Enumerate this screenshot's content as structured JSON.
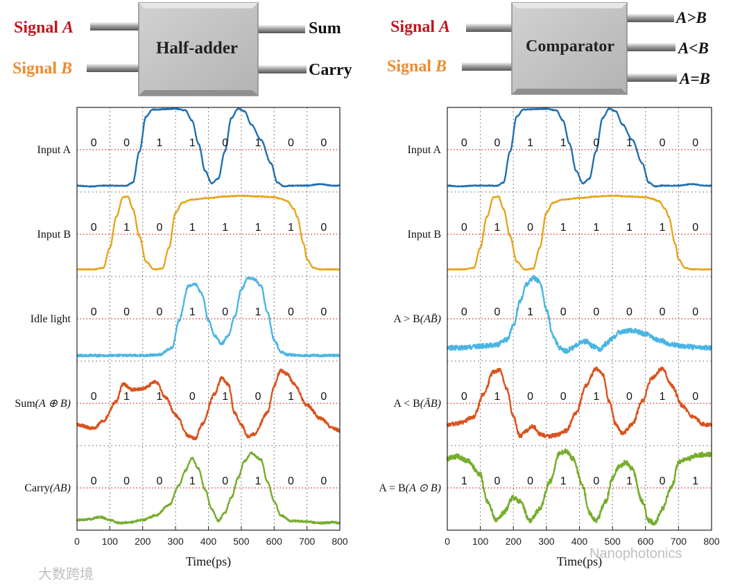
{
  "colors": {
    "signal_a": "#c0161f",
    "signal_b": "#ec8b2f",
    "box_fill": "#c4c4c4",
    "grid": "#555555",
    "bit_line": "#d62020"
  },
  "diagrams": [
    {
      "title": "Half-adder",
      "inputs": [
        {
          "prefix": "Signal ",
          "var": "A",
          "color_key": "signal_a"
        },
        {
          "prefix": "Signal ",
          "var": "B",
          "color_key": "signal_b"
        }
      ],
      "outputs": [
        "Sum",
        "Carry"
      ]
    },
    {
      "title": "Comparator",
      "inputs": [
        {
          "prefix": "Signal ",
          "var": "A",
          "color_key": "signal_a"
        },
        {
          "prefix": "Signal ",
          "var": "B",
          "color_key": "signal_b"
        }
      ],
      "outputs": [
        "A>B",
        "A<B",
        "A=B"
      ]
    }
  ],
  "chart_data": [
    {
      "type": "line",
      "title": "Half-adder",
      "xlabel": "Time(ps)",
      "xlim": [
        0,
        800
      ],
      "xticks": [
        0,
        100,
        200,
        300,
        400,
        500,
        600,
        700,
        800
      ],
      "bit_slots": [
        50,
        150,
        250,
        350,
        450,
        550,
        650,
        750
      ],
      "series": [
        {
          "label": "Input A",
          "color": "#1f6fb0",
          "noise": 0.005,
          "bits": [
            "0",
            "0",
            "1",
            "1",
            "0",
            "1",
            "0",
            "0"
          ],
          "x": [
            0,
            40,
            80,
            120,
            150,
            170,
            190,
            210,
            230,
            300,
            330,
            350,
            370,
            390,
            410,
            430,
            450,
            470,
            490,
            510,
            530,
            560,
            590,
            610,
            630,
            650,
            700,
            740,
            780,
            800
          ],
          "y": [
            0.01,
            0.0,
            0.01,
            0.01,
            0.01,
            0.05,
            0.45,
            0.9,
            0.99,
            1.0,
            0.98,
            0.85,
            0.55,
            0.2,
            0.04,
            0.1,
            0.45,
            0.88,
            1.0,
            0.97,
            0.8,
            0.6,
            0.3,
            0.05,
            0.0,
            0.01,
            0.01,
            0.03,
            0.01,
            0.01
          ]
        },
        {
          "label": "Input B",
          "color": "#e6a41e",
          "noise": 0.005,
          "bits": [
            "0",
            "1",
            "0",
            "1",
            "1",
            "1",
            "1",
            "0"
          ],
          "x": [
            0,
            50,
            80,
            100,
            120,
            140,
            155,
            170,
            190,
            210,
            235,
            260,
            280,
            300,
            320,
            350,
            400,
            450,
            500,
            550,
            600,
            620,
            640,
            660,
            670,
            690,
            700,
            720,
            740,
            760,
            800
          ],
          "y": [
            0.02,
            0.02,
            0.04,
            0.3,
            0.7,
            0.95,
            0.96,
            0.8,
            0.45,
            0.12,
            0.02,
            0.03,
            0.3,
            0.75,
            0.88,
            0.92,
            0.94,
            0.96,
            0.97,
            0.96,
            0.95,
            0.93,
            0.9,
            0.8,
            0.7,
            0.35,
            0.15,
            0.04,
            0.02,
            0.02,
            0.02
          ]
        },
        {
          "label": "Idle light",
          "color": "#4ab5e3",
          "noise": 0.015,
          "bits": [
            "0",
            "0",
            "0",
            "1",
            "0",
            "1",
            "0",
            "0"
          ],
          "x": [
            0,
            100,
            200,
            250,
            290,
            310,
            340,
            360,
            380,
            400,
            420,
            440,
            460,
            480,
            500,
            520,
            540,
            560,
            580,
            600,
            620,
            640,
            700,
            800
          ],
          "y": [
            0.0,
            0.0,
            0.0,
            0.01,
            0.1,
            0.45,
            0.9,
            0.92,
            0.8,
            0.45,
            0.25,
            0.15,
            0.25,
            0.5,
            0.85,
            1.0,
            0.98,
            0.9,
            0.55,
            0.2,
            0.05,
            0.01,
            0.0,
            0.0
          ]
        },
        {
          "label": "Sum",
          "var": "(A ⊕ B)",
          "color": "#d9531e",
          "noise": 0.02,
          "bits": [
            "0",
            "1",
            "1",
            "0",
            "1",
            "0",
            "1",
            "0"
          ],
          "x": [
            0,
            50,
            80,
            120,
            140,
            170,
            200,
            240,
            270,
            300,
            340,
            360,
            380,
            420,
            440,
            460,
            480,
            500,
            520,
            540,
            580,
            600,
            620,
            640,
            660,
            700,
            740,
            780,
            800
          ],
          "y": [
            0.2,
            0.15,
            0.25,
            0.5,
            0.72,
            0.65,
            0.66,
            0.75,
            0.55,
            0.32,
            0.05,
            0.02,
            0.2,
            0.6,
            0.8,
            0.72,
            0.35,
            0.2,
            0.05,
            0.08,
            0.35,
            0.7,
            0.9,
            0.85,
            0.72,
            0.45,
            0.28,
            0.15,
            0.12
          ]
        },
        {
          "label": "Carry",
          "var": "(AB)",
          "color": "#76ad2c",
          "noise": 0.012,
          "bits": [
            "0",
            "0",
            "0",
            "1",
            "0",
            "1",
            "0",
            "0"
          ],
          "x": [
            0,
            40,
            70,
            100,
            130,
            160,
            200,
            240,
            280,
            310,
            330,
            350,
            370,
            390,
            410,
            430,
            450,
            470,
            490,
            510,
            530,
            560,
            580,
            600,
            620,
            650,
            700,
            740,
            780,
            800
          ],
          "y": [
            0.06,
            0.07,
            0.1,
            0.06,
            0.02,
            0.03,
            0.06,
            0.12,
            0.25,
            0.5,
            0.7,
            0.86,
            0.72,
            0.45,
            0.2,
            0.05,
            0.15,
            0.35,
            0.6,
            0.82,
            0.92,
            0.84,
            0.55,
            0.3,
            0.12,
            0.05,
            0.04,
            0.02,
            0.03,
            0.02
          ]
        }
      ]
    },
    {
      "type": "line",
      "title": "Comparator",
      "xlabel": "Time(ps)",
      "xlim": [
        0,
        800
      ],
      "xticks": [
        0,
        100,
        200,
        300,
        400,
        500,
        600,
        700,
        800
      ],
      "bit_slots": [
        50,
        150,
        250,
        350,
        450,
        550,
        650,
        750
      ],
      "series": [
        {
          "label": "Input A",
          "color": "#1f6fb0",
          "noise": 0.005,
          "bits": [
            "0",
            "0",
            "1",
            "1",
            "0",
            "1",
            "0",
            "0"
          ],
          "x": [
            0,
            40,
            80,
            120,
            150,
            170,
            190,
            210,
            230,
            300,
            330,
            350,
            370,
            390,
            410,
            430,
            450,
            470,
            490,
            510,
            530,
            560,
            590,
            610,
            630,
            650,
            700,
            740,
            780,
            800
          ],
          "y": [
            0.01,
            0.0,
            0.01,
            0.01,
            0.01,
            0.05,
            0.45,
            0.9,
            0.99,
            1.0,
            0.98,
            0.85,
            0.55,
            0.2,
            0.04,
            0.1,
            0.45,
            0.88,
            1.0,
            0.97,
            0.8,
            0.6,
            0.3,
            0.05,
            0.0,
            0.01,
            0.01,
            0.03,
            0.01,
            0.01
          ]
        },
        {
          "label": "Input B",
          "color": "#e6a41e",
          "noise": 0.005,
          "bits": [
            "0",
            "1",
            "0",
            "1",
            "1",
            "1",
            "1",
            "0"
          ],
          "x": [
            0,
            50,
            80,
            100,
            120,
            140,
            155,
            170,
            190,
            210,
            235,
            260,
            280,
            300,
            320,
            350,
            400,
            450,
            500,
            550,
            600,
            620,
            640,
            660,
            670,
            690,
            700,
            720,
            740,
            760,
            800
          ],
          "y": [
            0.02,
            0.02,
            0.04,
            0.3,
            0.7,
            0.95,
            0.96,
            0.8,
            0.45,
            0.12,
            0.02,
            0.03,
            0.3,
            0.75,
            0.88,
            0.92,
            0.94,
            0.96,
            0.97,
            0.96,
            0.95,
            0.93,
            0.9,
            0.8,
            0.7,
            0.35,
            0.15,
            0.04,
            0.02,
            0.02,
            0.02
          ]
        },
        {
          "label": "A > B",
          "var": "(AB̄)",
          "color": "#4ab5e3",
          "noise": 0.03,
          "bits": [
            "0",
            "0",
            "1",
            "0",
            "0",
            "0",
            "0",
            "0"
          ],
          "x": [
            0,
            50,
            100,
            150,
            180,
            200,
            220,
            240,
            260,
            280,
            300,
            320,
            340,
            360,
            380,
            400,
            420,
            440,
            460,
            480,
            500,
            520,
            560,
            600,
            640,
            680,
            720,
            760,
            800
          ],
          "y": [
            0.1,
            0.1,
            0.12,
            0.14,
            0.2,
            0.38,
            0.7,
            0.92,
            1.0,
            0.95,
            0.6,
            0.25,
            0.1,
            0.06,
            0.1,
            0.16,
            0.18,
            0.12,
            0.08,
            0.15,
            0.22,
            0.3,
            0.32,
            0.28,
            0.2,
            0.14,
            0.12,
            0.1,
            0.1
          ]
        },
        {
          "label": "A < B",
          "var": "(ĀB)",
          "color": "#d9531e",
          "noise": 0.025,
          "bits": [
            "0",
            "1",
            "0",
            "0",
            "1",
            "0",
            "1",
            "0"
          ],
          "x": [
            0,
            40,
            80,
            110,
            140,
            160,
            180,
            200,
            220,
            240,
            260,
            280,
            300,
            330,
            360,
            390,
            420,
            450,
            470,
            490,
            510,
            530,
            560,
            590,
            620,
            650,
            680,
            710,
            740,
            780,
            800
          ],
          "y": [
            0.2,
            0.22,
            0.3,
            0.6,
            0.88,
            0.9,
            0.65,
            0.3,
            0.05,
            0.12,
            0.18,
            0.08,
            0.05,
            0.06,
            0.12,
            0.35,
            0.7,
            0.92,
            0.85,
            0.5,
            0.2,
            0.08,
            0.2,
            0.5,
            0.8,
            0.92,
            0.7,
            0.45,
            0.3,
            0.2,
            0.2
          ]
        },
        {
          "label": "A = B",
          "var": "(A ⊙ B)",
          "color": "#76ad2c",
          "noise": 0.03,
          "bits": [
            "1",
            "0",
            "0",
            "1",
            "0",
            "1",
            "0",
            "1"
          ],
          "x": [
            0,
            30,
            60,
            100,
            120,
            150,
            170,
            200,
            220,
            250,
            280,
            310,
            340,
            360,
            380,
            410,
            430,
            450,
            480,
            500,
            520,
            540,
            560,
            590,
            610,
            630,
            650,
            680,
            700,
            730,
            760,
            800
          ],
          "y": [
            0.85,
            0.88,
            0.82,
            0.65,
            0.3,
            0.05,
            0.15,
            0.35,
            0.3,
            0.05,
            0.2,
            0.55,
            0.92,
            0.95,
            0.85,
            0.5,
            0.15,
            0.05,
            0.3,
            0.6,
            0.75,
            0.8,
            0.72,
            0.3,
            0.05,
            0.02,
            0.2,
            0.5,
            0.8,
            0.85,
            0.9,
            0.9
          ]
        }
      ]
    }
  ],
  "watermarks": [
    "大数跨境",
    "Nanophotonics"
  ]
}
